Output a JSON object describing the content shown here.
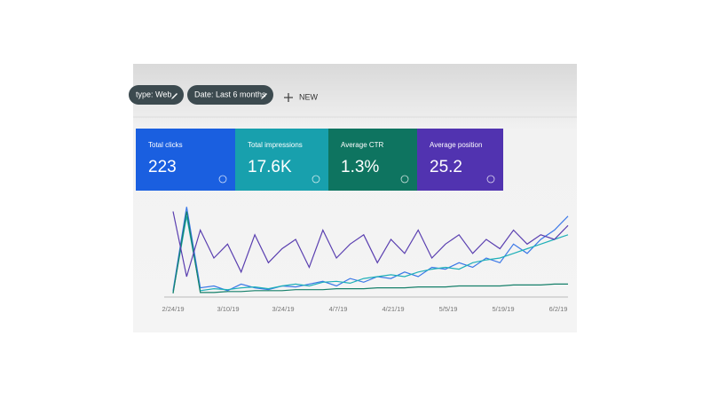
{
  "filters": [
    {
      "label": "type: Web"
    },
    {
      "label": "Date: Last 6 months"
    }
  ],
  "new_button": "NEW",
  "chart": {
    "type": "line",
    "ylim": [
      0,
      100
    ],
    "x_labels": [
      "2/24/19",
      "3/10/19",
      "3/24/19",
      "4/7/19",
      "4/21/19",
      "5/5/19",
      "5/19/19",
      "6/2/19"
    ]
  },
  "cards": [
    {
      "label": "Total clicks",
      "value": "223",
      "color": "#1a5fe0",
      "line_color": "#3b78e7",
      "values": [
        5,
        95,
        8,
        10,
        5,
        12,
        8,
        6,
        10,
        9,
        12,
        15,
        10,
        18,
        14,
        20,
        18,
        25,
        20,
        30,
        28,
        35,
        30,
        40,
        35,
        55,
        45,
        60,
        70,
        85
      ]
    },
    {
      "label": "Total impressions",
      "value": "17.6K",
      "color": "#18a0ad",
      "line_color": "#1fb0b8",
      "values": [
        3,
        85,
        5,
        7,
        6,
        8,
        9,
        7,
        10,
        12,
        10,
        14,
        15,
        13,
        18,
        20,
        22,
        20,
        25,
        28,
        30,
        28,
        35,
        38,
        40,
        45,
        50,
        55,
        60,
        65
      ]
    },
    {
      "label": "Average CTR",
      "value": "1.3%",
      "color": "#0e7460",
      "line_color": "#16806a",
      "values": [
        2,
        90,
        3,
        3,
        4,
        4,
        5,
        5,
        5,
        6,
        6,
        6,
        7,
        7,
        7,
        8,
        8,
        8,
        9,
        9,
        9,
        10,
        10,
        10,
        10,
        11,
        11,
        11,
        12,
        12
      ]
    },
    {
      "label": "Average position",
      "value": "25.2",
      "color": "#5133b0",
      "line_color": "#5a3fb0",
      "values": [
        90,
        20,
        70,
        40,
        55,
        25,
        65,
        35,
        50,
        60,
        30,
        70,
        40,
        55,
        65,
        35,
        60,
        45,
        70,
        40,
        55,
        65,
        45,
        60,
        50,
        70,
        55,
        65,
        60,
        75
      ]
    }
  ]
}
